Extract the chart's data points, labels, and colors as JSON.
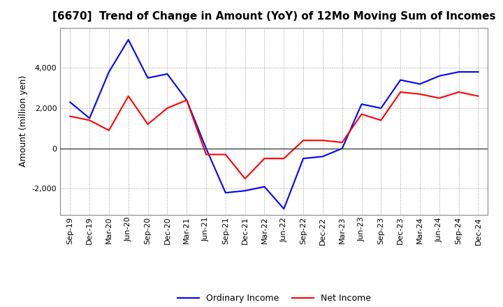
{
  "title": "[6670]  Trend of Change in Amount (YoY) of 12Mo Moving Sum of Incomes",
  "ylabel": "Amount (million yen)",
  "labels": [
    "Sep-19",
    "Dec-19",
    "Mar-20",
    "Jun-20",
    "Sep-20",
    "Dec-20",
    "Mar-21",
    "Jun-21",
    "Sep-21",
    "Dec-21",
    "Mar-22",
    "Jun-22",
    "Sep-22",
    "Dec-22",
    "Mar-23",
    "Jun-23",
    "Sep-23",
    "Dec-23",
    "Mar-24",
    "Jun-24",
    "Sep-24",
    "Dec-24"
  ],
  "ordinary_income": [
    2300,
    1500,
    3800,
    5400,
    3500,
    3700,
    2400,
    0,
    -2200,
    -2100,
    -1900,
    -3000,
    -500,
    -400,
    0,
    2200,
    2000,
    3400,
    3200,
    3600,
    3800,
    3800
  ],
  "net_income": [
    1600,
    1400,
    900,
    2600,
    1200,
    2000,
    2400,
    -300,
    -300,
    -1500,
    -500,
    -500,
    400,
    400,
    300,
    1700,
    1400,
    2800,
    2700,
    2500,
    2800,
    2600
  ],
  "ordinary_color": "#0000FF",
  "net_color": "#FF0000",
  "background_color": "#FFFFFF",
  "plot_bg_color": "#FFFFFF",
  "grid_color": "#999999",
  "ylim": [
    -3300,
    6000
  ],
  "yticks": [
    -2000,
    0,
    2000,
    4000
  ],
  "legend_ordinary": "Ordinary Income",
  "legend_net": "Net Income",
  "title_fontsize": 11,
  "tick_fontsize": 8,
  "ylabel_fontsize": 9
}
